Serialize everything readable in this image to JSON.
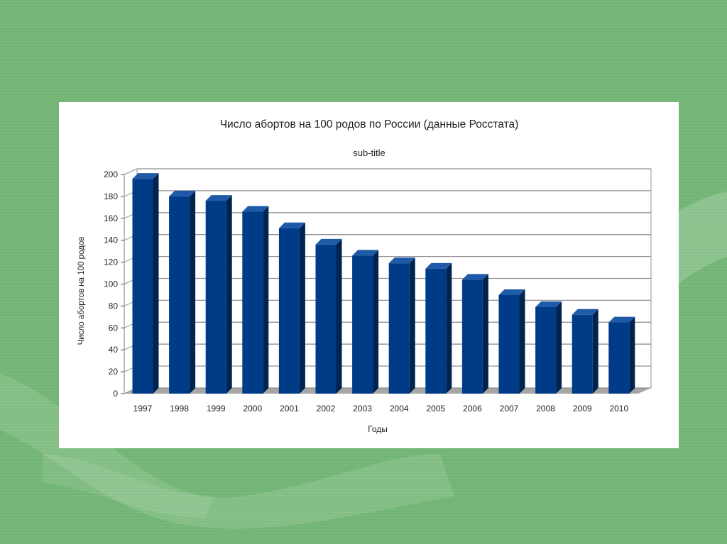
{
  "chart_data": {
    "type": "bar",
    "title": "Число абортов на 100 родов по России (данные Росстата)",
    "subtitle": "sub-title",
    "xlabel": "Годы",
    "ylabel": "Число абортов на 100 родов",
    "categories": [
      "1997",
      "1998",
      "1999",
      "2000",
      "2001",
      "2002",
      "2003",
      "2004",
      "2005",
      "2006",
      "2007",
      "2008",
      "2009",
      "2010"
    ],
    "series": [
      {
        "values": [
          196,
          180,
          176,
          166,
          151,
          136,
          126,
          119,
          114,
          104,
          90,
          79,
          72,
          65
        ]
      }
    ],
    "ylim": [
      0,
      200
    ],
    "yticks": [
      0,
      20,
      40,
      60,
      80,
      100,
      120,
      140,
      160,
      180,
      200
    ],
    "grid": true,
    "legend": "none",
    "colors": {
      "bar_front": "#003b88",
      "bar_side": "#00244f",
      "bar_top": "#1f5aa8",
      "grid": "#909090",
      "floor": "#a6a6a6"
    }
  }
}
